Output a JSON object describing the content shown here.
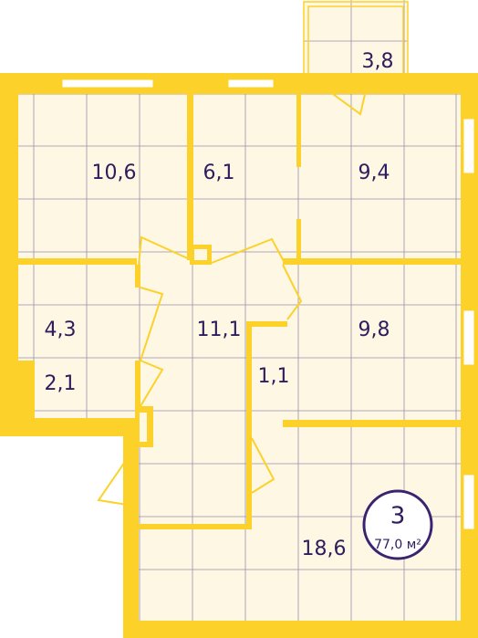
{
  "balcony": {
    "area": "3,8"
  },
  "rooms": [
    {
      "area": "10,6"
    },
    {
      "area": "6,1"
    },
    {
      "area": "9,4"
    },
    {
      "area": "4,3"
    },
    {
      "area": "11,1"
    },
    {
      "area": "9,8"
    },
    {
      "area": "2,1"
    },
    {
      "area": "1,1"
    },
    {
      "area": "18,6"
    }
  ],
  "badge": {
    "rooms": "3",
    "total": "77,0 м²"
  }
}
